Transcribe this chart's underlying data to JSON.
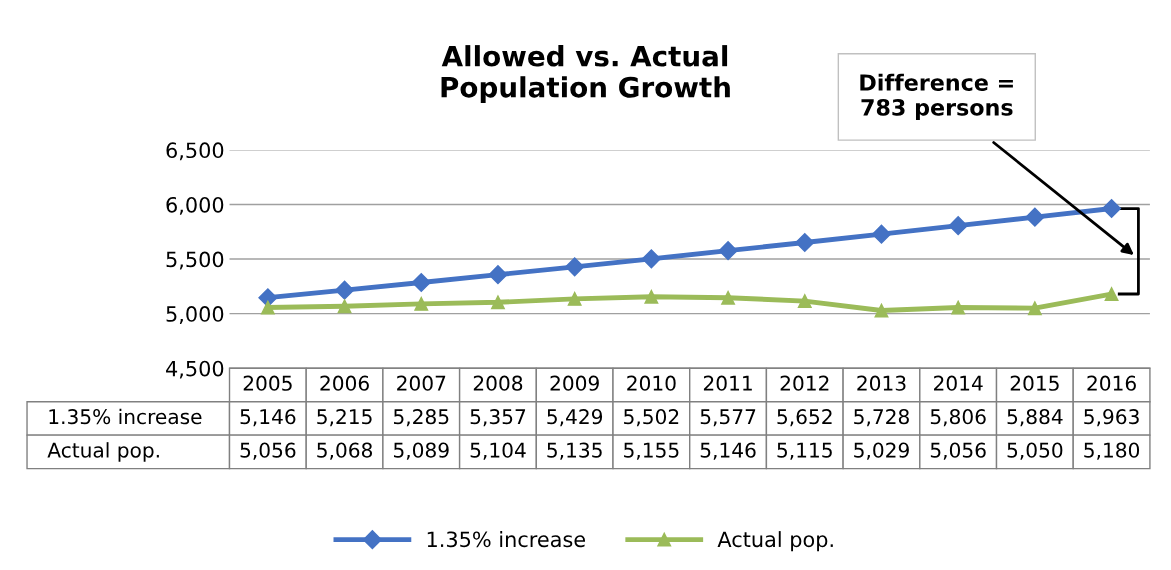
{
  "chart_data": {
    "type": "line",
    "title": "Allowed vs. Actual\nPopulation Growth",
    "categories": [
      "2005",
      "2006",
      "2007",
      "2008",
      "2009",
      "2010",
      "2011",
      "2012",
      "2013",
      "2014",
      "2015",
      "2016"
    ],
    "series": [
      {
        "name": "1.35% increase",
        "color": "#4472c4",
        "marker": "diamond",
        "values": [
          5146,
          5215,
          5285,
          5357,
          5429,
          5502,
          5577,
          5652,
          5728,
          5806,
          5884,
          5963
        ],
        "value_labels": [
          "5,146",
          "5,215",
          "5,285",
          "5,357",
          "5,429",
          "5,502",
          "5,577",
          "5,652",
          "5,728",
          "5,806",
          "5,884",
          "5,963"
        ]
      },
      {
        "name": "Actual pop.",
        "color": "#9bbb59",
        "marker": "triangle",
        "values": [
          5056,
          5068,
          5089,
          5104,
          5135,
          5155,
          5146,
          5115,
          5029,
          5056,
          5050,
          5180
        ],
        "value_labels": [
          "5,056",
          "5,068",
          "5,089",
          "5,104",
          "5,135",
          "5,155",
          "5,146",
          "5,115",
          "5,029",
          "5,056",
          "5,050",
          "5,180"
        ]
      }
    ],
    "ylim": [
      4500,
      6500
    ],
    "yticks": [
      {
        "value": 4500,
        "label": "4,500"
      },
      {
        "value": 5000,
        "label": "5,000"
      },
      {
        "value": 5500,
        "label": "5,500"
      },
      {
        "value": 6000,
        "label": "6,000"
      },
      {
        "value": 6500,
        "label": "6,500"
      }
    ],
    "grid": "y",
    "legend": "bottom",
    "tick_labels": "y",
    "line_style": "solid",
    "annotations": [
      "Difference =\n783 persons"
    ]
  }
}
